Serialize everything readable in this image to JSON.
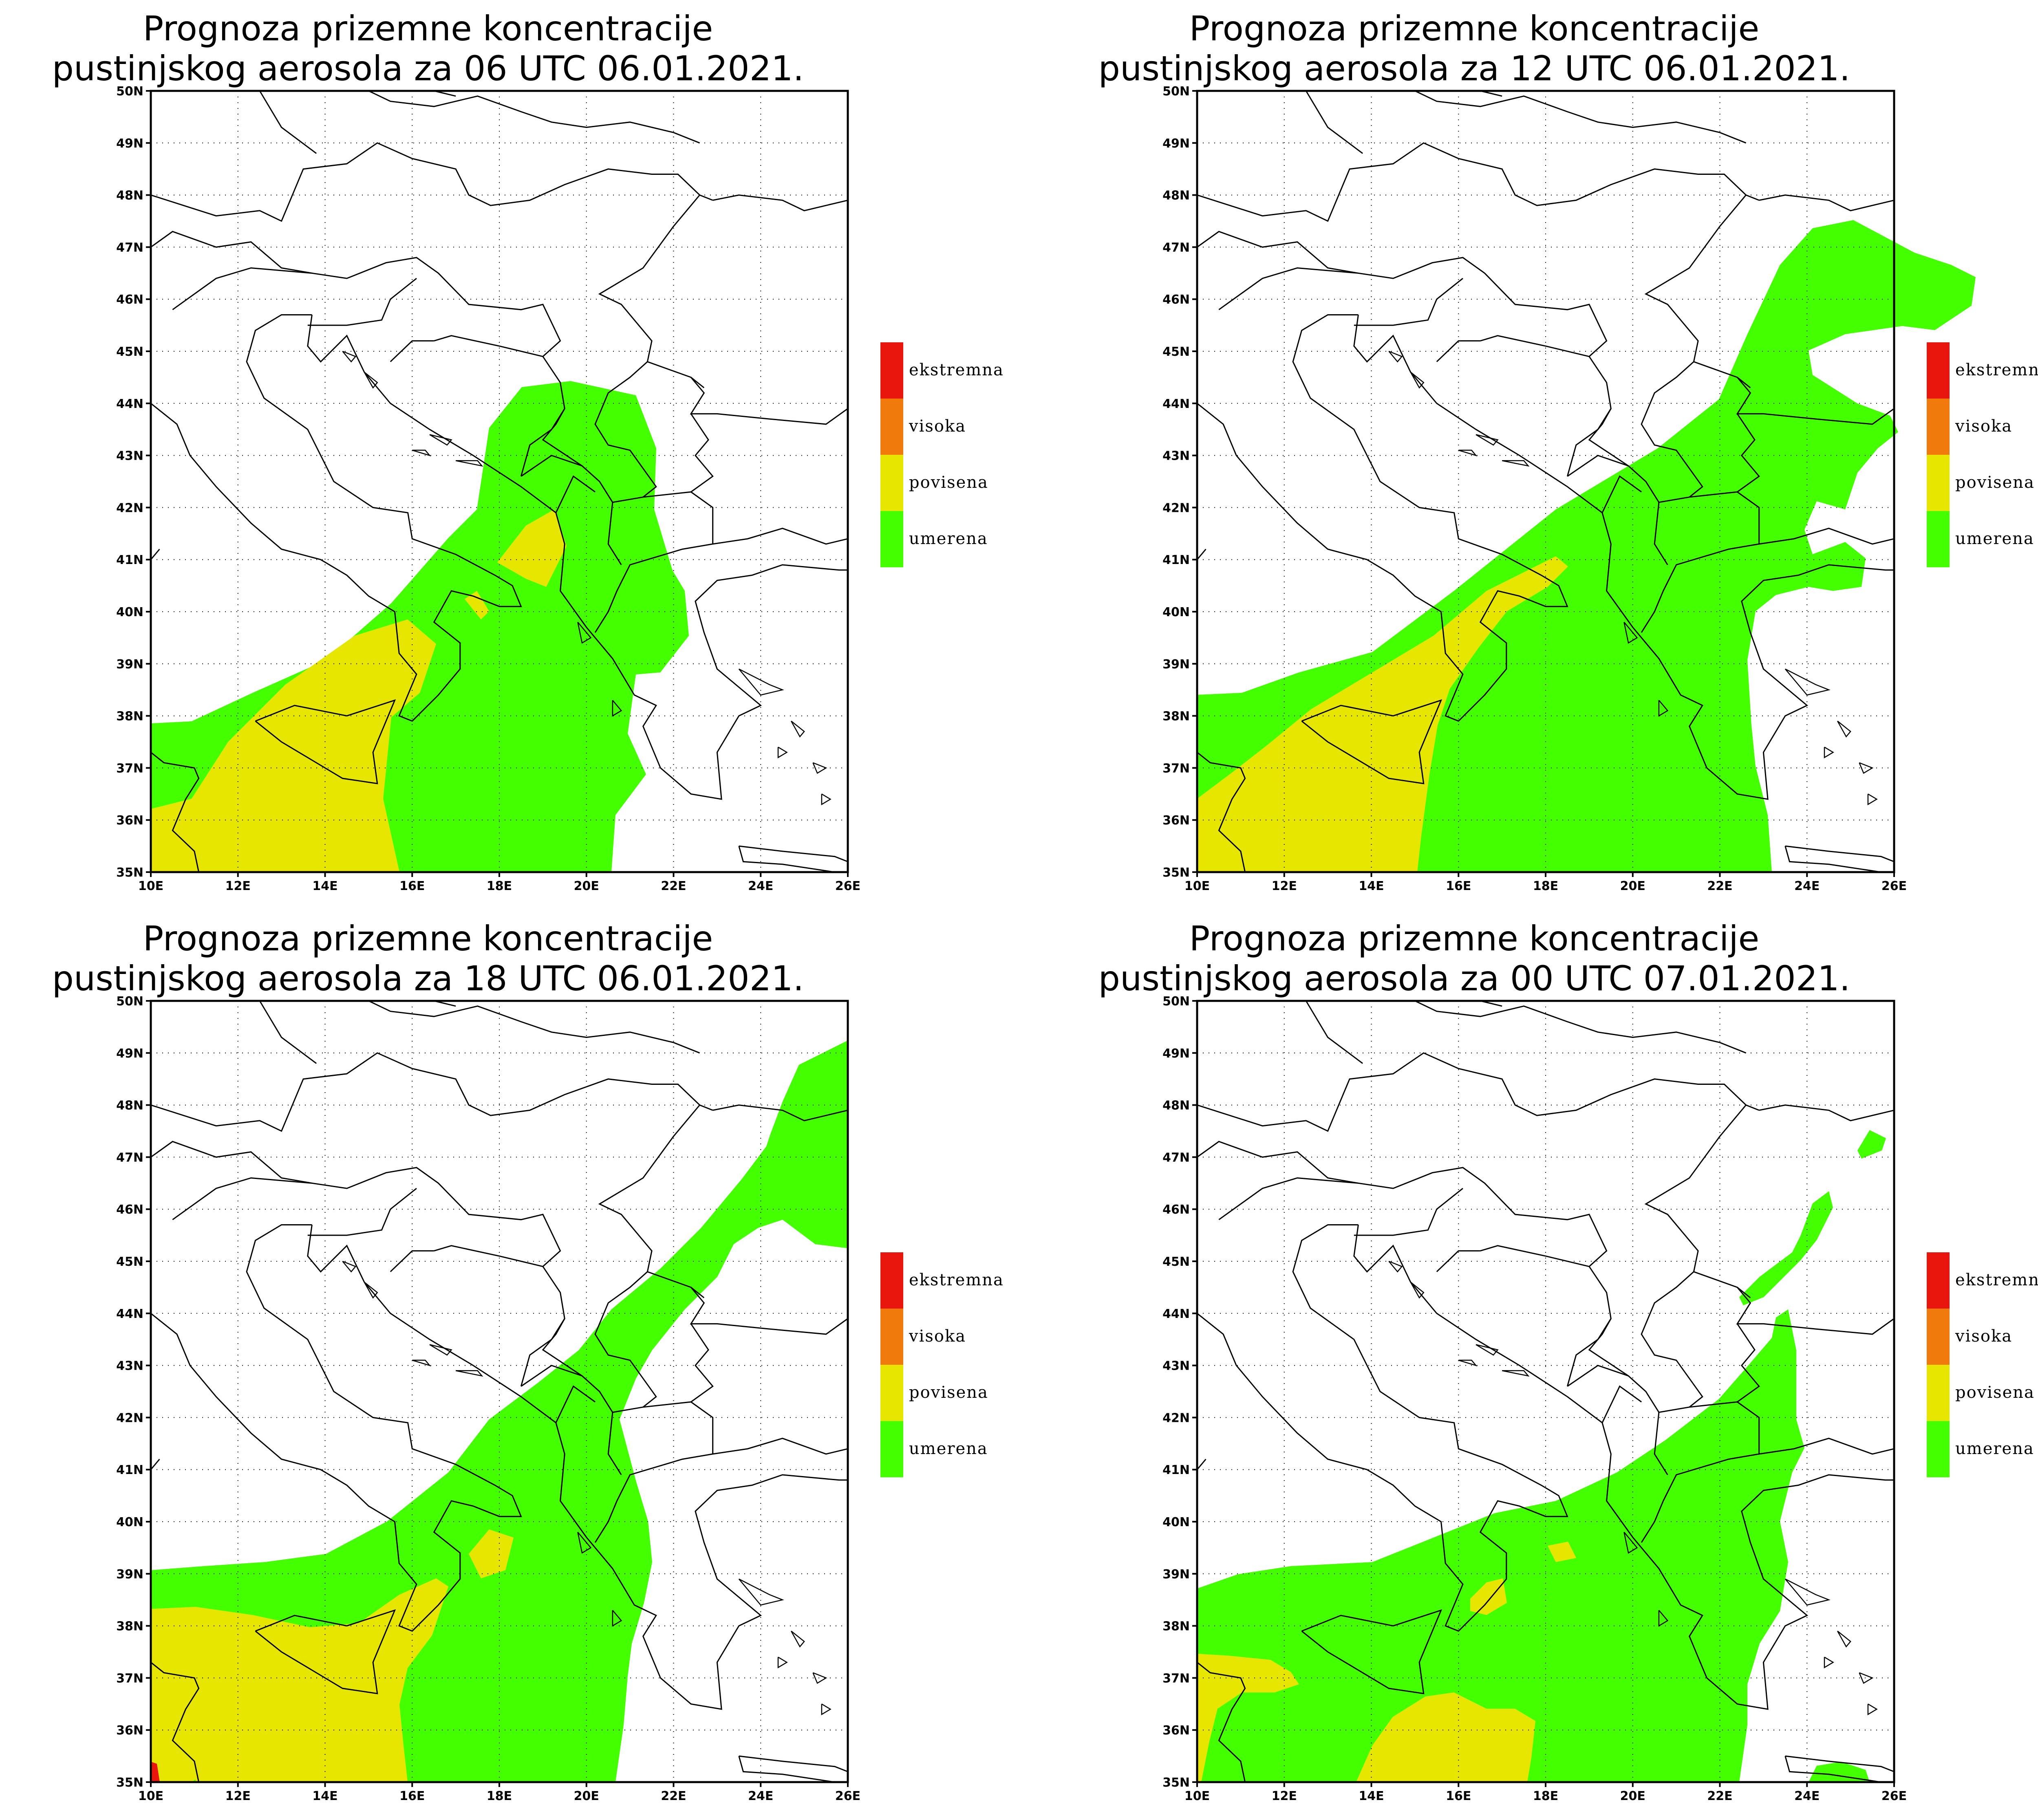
{
  "lat_labels": [
    "50N",
    "49N",
    "48N",
    "47N",
    "46N",
    "45N",
    "44N",
    "43N",
    "42N",
    "41N",
    "40N",
    "39N",
    "38N",
    "37N",
    "36N",
    "35N"
  ],
  "lon_labels": [
    "10E",
    "12E",
    "14E",
    "16E",
    "18E",
    "20E",
    "22E",
    "24E",
    "26E"
  ],
  "legend": [
    {
      "label": "ekstremna",
      "color": "#e8160c"
    },
    {
      "label": "visoka",
      "color": "#f07a0c"
    },
    {
      "label": "povisena",
      "color": "#e6e600"
    },
    {
      "label": "umerena",
      "color": "#44ff00"
    }
  ],
  "colors": {
    "umerena": "#44ff00",
    "povisena": "#e6e600",
    "visoka": "#f07a0c",
    "ekstremna": "#e8160c"
  },
  "panels": [
    {
      "title_line1": "Prognoza prizemne koncentracije",
      "title_line2": "pustinjskog aerosola za 06 UTC 06.01.2021."
    },
    {
      "title_line1": "Prognoza prizemne koncentracije",
      "title_line2": "pustinjskog aerosola za 12 UTC 06.01.2021."
    },
    {
      "title_line1": "Prognoza prizemne koncentracije",
      "title_line2": "pustinjskog aerosola za 18 UTC 06.01.2021."
    },
    {
      "title_line1": "Prognoza prizemne koncentracije",
      "title_line2": "pustinjskog aerosola za 00 UTC 07.01.2021."
    }
  ]
}
